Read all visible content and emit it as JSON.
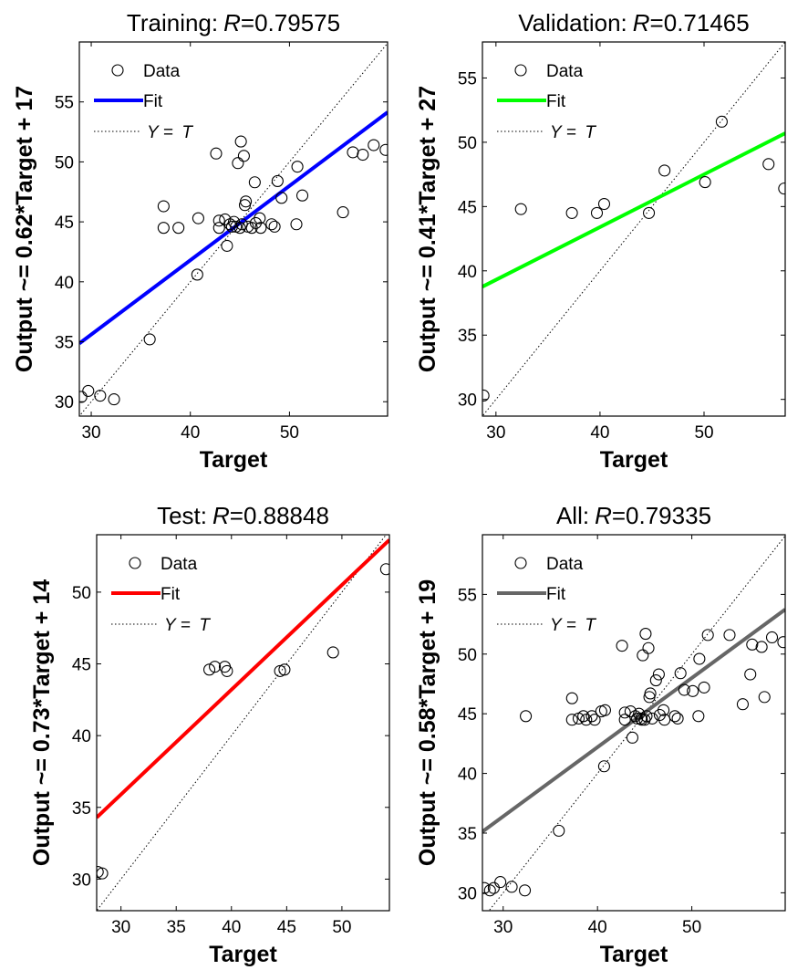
{
  "chart_data": [
    {
      "type": "scatter",
      "title": "Training: R=0.79575",
      "title_prefix": "Training:",
      "title_r": "R",
      "title_value": "=0.79575",
      "xlabel": "Target",
      "ylabel": "Output ~= 0.62*Target + 17",
      "xlim": [
        28.8,
        59.9
      ],
      "ylim": [
        28.8,
        60.0
      ],
      "xticks": [
        30,
        40,
        50
      ],
      "yticks": [
        30,
        35,
        40,
        45,
        50,
        55
      ],
      "fit": {
        "slope": 0.62,
        "intercept": 17,
        "color": "#0000ff"
      },
      "legend": {
        "data": "Data",
        "fit": "Fit",
        "ideal_y": "Y",
        "ideal_eq": " = ",
        "ideal_t": "T",
        "position": "top-left"
      },
      "points": [
        [
          29.0,
          30.4
        ],
        [
          29.7,
          30.9
        ],
        [
          30.9,
          30.5
        ],
        [
          32.3,
          30.2
        ],
        [
          35.9,
          35.2
        ],
        [
          37.3,
          46.3
        ],
        [
          37.3,
          44.5
        ],
        [
          38.8,
          44.5
        ],
        [
          40.7,
          40.6
        ],
        [
          40.8,
          45.3
        ],
        [
          42.6,
          50.7
        ],
        [
          42.9,
          45.1
        ],
        [
          42.9,
          44.5
        ],
        [
          43.5,
          45.2
        ],
        [
          43.7,
          43.0
        ],
        [
          44.0,
          44.8
        ],
        [
          44.2,
          44.6
        ],
        [
          44.4,
          45.0
        ],
        [
          44.6,
          44.6
        ],
        [
          44.8,
          49.9
        ],
        [
          45.0,
          44.5
        ],
        [
          45.1,
          51.7
        ],
        [
          45.2,
          44.8
        ],
        [
          45.4,
          50.5
        ],
        [
          45.5,
          46.4
        ],
        [
          45.6,
          46.7
        ],
        [
          45.8,
          44.6
        ],
        [
          46.2,
          44.5
        ],
        [
          46.5,
          48.3
        ],
        [
          46.6,
          44.9
        ],
        [
          47.0,
          45.3
        ],
        [
          47.1,
          44.5
        ],
        [
          48.2,
          44.8
        ],
        [
          48.5,
          44.6
        ],
        [
          48.8,
          48.4
        ],
        [
          49.2,
          47.0
        ],
        [
          50.7,
          44.8
        ],
        [
          50.8,
          49.6
        ],
        [
          51.3,
          47.2
        ],
        [
          55.4,
          45.8
        ],
        [
          56.4,
          50.8
        ],
        [
          57.4,
          50.6
        ],
        [
          58.5,
          51.4
        ],
        [
          59.7,
          51.0
        ]
      ]
    },
    {
      "type": "scatter",
      "title": "Validation: R=0.71465",
      "title_prefix": "Validation:",
      "title_r": "R",
      "title_value": "=0.71465",
      "xlabel": "Target",
      "ylabel": "Output ~= 0.41*Target + 27",
      "xlim": [
        28.7,
        57.8
      ],
      "ylim": [
        28.7,
        57.8
      ],
      "xticks": [
        30,
        40,
        50
      ],
      "yticks": [
        30,
        35,
        40,
        45,
        50,
        55
      ],
      "fit": {
        "slope": 0.41,
        "intercept": 27,
        "color": "#00ff00"
      },
      "legend": {
        "data": "Data",
        "fit": "Fit",
        "ideal_y": "Y",
        "ideal_eq": " = ",
        "ideal_t": "T",
        "position": "top-left"
      },
      "points": [
        [
          28.8,
          30.3
        ],
        [
          32.4,
          44.8
        ],
        [
          37.3,
          44.5
        ],
        [
          39.7,
          44.5
        ],
        [
          40.4,
          45.2
        ],
        [
          44.7,
          44.5
        ],
        [
          46.2,
          47.8
        ],
        [
          50.1,
          46.9
        ],
        [
          51.7,
          51.6
        ],
        [
          56.2,
          48.3
        ],
        [
          57.7,
          46.4
        ]
      ]
    },
    {
      "type": "scatter",
      "title": "Test: R=0.88848",
      "title_prefix": "Test:",
      "title_r": "R",
      "title_value": "=0.88848",
      "xlabel": "Target",
      "ylabel": "Output ~= 0.73*Target + 14",
      "xlim": [
        27.8,
        54.3
      ],
      "ylim": [
        27.8,
        54.0
      ],
      "xticks": [
        30,
        35,
        40,
        45,
        50
      ],
      "yticks": [
        30,
        35,
        40,
        45,
        50
      ],
      "fit": {
        "slope": 0.73,
        "intercept": 14,
        "color": "#ff0000"
      },
      "legend": {
        "data": "Data",
        "fit": "Fit",
        "ideal_y": "Y",
        "ideal_eq": " = ",
        "ideal_t": "T",
        "position": "top-left"
      },
      "points": [
        [
          27.9,
          30.5
        ],
        [
          28.3,
          30.4
        ],
        [
          38.0,
          44.6
        ],
        [
          38.5,
          44.8
        ],
        [
          39.4,
          44.8
        ],
        [
          39.6,
          44.5
        ],
        [
          44.4,
          44.5
        ],
        [
          44.8,
          44.6
        ],
        [
          49.2,
          45.8
        ],
        [
          54.0,
          51.6
        ]
      ]
    },
    {
      "type": "scatter",
      "title": "All: R=0.79335",
      "title_prefix": "All:",
      "title_r": "R",
      "title_value": "=0.79335",
      "xlabel": "Target",
      "ylabel": "Output ~= 0.58*Target + 19",
      "xlim": [
        27.8,
        59.9
      ],
      "ylim": [
        28.5,
        60.0
      ],
      "xticks": [
        30,
        40,
        50
      ],
      "yticks": [
        30,
        35,
        40,
        45,
        50,
        55
      ],
      "fit": {
        "slope": 0.58,
        "intercept": 19,
        "color": "#666666"
      },
      "legend": {
        "data": "Data",
        "fit": "Fit",
        "ideal_y": "Y",
        "ideal_eq": " = ",
        "ideal_t": "T",
        "position": "top-left"
      },
      "points": [
        [
          28.0,
          30.4
        ],
        [
          28.6,
          30.2
        ],
        [
          29.0,
          30.4
        ],
        [
          29.7,
          30.9
        ],
        [
          30.9,
          30.5
        ],
        [
          32.3,
          30.2
        ],
        [
          32.4,
          44.8
        ],
        [
          35.9,
          35.2
        ],
        [
          37.3,
          46.3
        ],
        [
          37.3,
          44.5
        ],
        [
          38.0,
          44.6
        ],
        [
          38.5,
          44.8
        ],
        [
          38.8,
          44.5
        ],
        [
          39.4,
          44.8
        ],
        [
          39.7,
          44.5
        ],
        [
          40.4,
          45.2
        ],
        [
          40.7,
          40.6
        ],
        [
          40.8,
          45.3
        ],
        [
          42.6,
          50.7
        ],
        [
          42.9,
          45.1
        ],
        [
          42.9,
          44.5
        ],
        [
          43.5,
          45.2
        ],
        [
          43.7,
          43.0
        ],
        [
          44.0,
          44.8
        ],
        [
          44.2,
          44.6
        ],
        [
          44.4,
          45.0
        ],
        [
          44.6,
          44.6
        ],
        [
          44.7,
          44.5
        ],
        [
          44.8,
          49.9
        ],
        [
          45.0,
          44.5
        ],
        [
          45.1,
          51.7
        ],
        [
          45.2,
          44.8
        ],
        [
          45.4,
          50.5
        ],
        [
          45.5,
          46.4
        ],
        [
          45.6,
          46.7
        ],
        [
          45.8,
          44.6
        ],
        [
          46.2,
          47.8
        ],
        [
          46.5,
          48.3
        ],
        [
          46.6,
          44.9
        ],
        [
          47.0,
          45.3
        ],
        [
          47.1,
          44.5
        ],
        [
          48.2,
          44.8
        ],
        [
          48.5,
          44.6
        ],
        [
          48.8,
          48.4
        ],
        [
          49.2,
          47.0
        ],
        [
          50.1,
          46.9
        ],
        [
          50.7,
          44.8
        ],
        [
          50.8,
          49.6
        ],
        [
          51.3,
          47.2
        ],
        [
          51.7,
          51.6
        ],
        [
          54.0,
          51.6
        ],
        [
          55.4,
          45.8
        ],
        [
          56.2,
          48.3
        ],
        [
          56.4,
          50.8
        ],
        [
          57.4,
          50.6
        ],
        [
          57.7,
          46.4
        ],
        [
          58.5,
          51.4
        ],
        [
          59.7,
          51.0
        ]
      ]
    }
  ]
}
